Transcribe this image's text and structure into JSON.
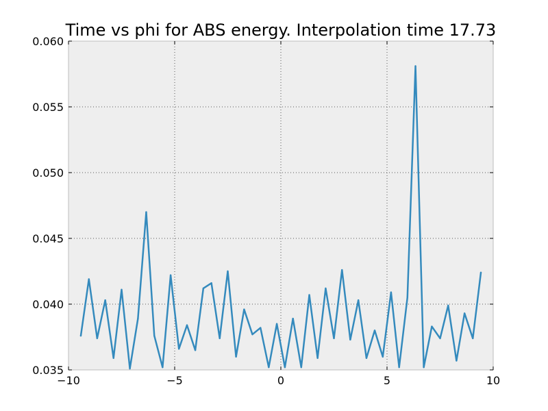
{
  "chart_data": {
    "type": "line",
    "title": "Time vs phi for ABS energy. Interpolation time 17.73",
    "xlabel": "",
    "ylabel": "",
    "xlim": [
      -10,
      10
    ],
    "ylim": [
      0.035,
      0.06
    ],
    "xticks": [
      -10,
      -5,
      0,
      5,
      10
    ],
    "xtick_labels": [
      "−10",
      "−5",
      "0",
      "5",
      "10"
    ],
    "yticks": [
      0.035,
      0.04,
      0.045,
      0.05,
      0.055,
      0.06
    ],
    "ytick_labels": [
      "0.035",
      "0.040",
      "0.045",
      "0.050",
      "0.055",
      "0.060"
    ],
    "grid": true,
    "legend": "none",
    "colors": {
      "line": "#348abd",
      "plot_background": "#eeeeee",
      "grid": "#555555",
      "frame": "#bcbcbc"
    },
    "series": [
      {
        "x": [
          -9.42,
          -9.04,
          -8.65,
          -8.27,
          -7.88,
          -7.5,
          -7.11,
          -6.73,
          -6.34,
          -5.96,
          -5.57,
          -5.19,
          -4.8,
          -4.42,
          -4.03,
          -3.65,
          -3.27,
          -2.88,
          -2.5,
          -2.11,
          -1.73,
          -1.34,
          -0.96,
          -0.57,
          -0.19,
          0.19,
          0.57,
          0.96,
          1.34,
          1.73,
          2.11,
          2.5,
          2.88,
          3.27,
          3.65,
          4.03,
          4.42,
          4.8,
          5.19,
          5.57,
          5.96,
          6.34,
          6.73,
          7.11,
          7.5,
          7.88,
          8.27,
          8.65,
          9.04,
          9.42
        ],
        "y": [
          0.0376,
          0.0419,
          0.0374,
          0.0403,
          0.0359,
          0.0411,
          0.0351,
          0.0389,
          0.047,
          0.0376,
          0.0352,
          0.0422,
          0.0366,
          0.0384,
          0.0365,
          0.0412,
          0.0416,
          0.0374,
          0.0425,
          0.036,
          0.0396,
          0.0377,
          0.0382,
          0.0352,
          0.0385,
          0.0352,
          0.0389,
          0.0352,
          0.0407,
          0.0359,
          0.0412,
          0.0374,
          0.0426,
          0.0373,
          0.0403,
          0.0359,
          0.038,
          0.036,
          0.0409,
          0.0352,
          0.0405,
          0.0581,
          0.0352,
          0.0383,
          0.0374,
          0.0399,
          0.0357,
          0.0393,
          0.0374,
          0.0424
        ]
      }
    ]
  }
}
